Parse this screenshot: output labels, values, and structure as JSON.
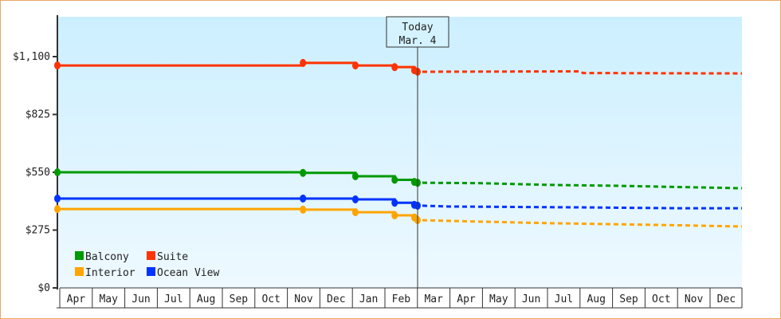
{
  "chart_data": {
    "type": "line",
    "title": "",
    "xlabel": "",
    "ylabel": "",
    "ylim": [
      0,
      1100
    ],
    "y_ticks": [
      "$0",
      "$275",
      "$550",
      "$825",
      "$1,100"
    ],
    "y_tick_values": [
      0,
      275,
      550,
      825,
      1100
    ],
    "categories": [
      "Apr",
      "May",
      "Jun",
      "Jul",
      "Aug",
      "Sep",
      "Oct",
      "Nov",
      "Dec",
      "Jan",
      "Feb",
      "Mar",
      "Apr",
      "May",
      "Jun",
      "Jul",
      "Aug",
      "Sep",
      "Oct",
      "Nov",
      "Dec"
    ],
    "grid": false,
    "legend_position": "bottom-left inside",
    "today_marker": {
      "line1": "Today",
      "line2": "Mar. 4"
    },
    "series": [
      {
        "name": "Suite",
        "color": "#ff3300",
        "history": [
          [
            0,
            1058
          ],
          [
            7.5,
            1070
          ],
          [
            9.1,
            1058
          ],
          [
            10.3,
            1050
          ],
          [
            10.9,
            1035
          ],
          [
            11.0,
            1028
          ]
        ],
        "projection": [
          [
            11.0,
            1028
          ],
          [
            16.0,
            1030
          ],
          [
            16.1,
            1022
          ],
          [
            21.0,
            1020
          ]
        ]
      },
      {
        "name": "Balcony",
        "color": "#009900",
        "history": [
          [
            0,
            550
          ],
          [
            7.5,
            547
          ],
          [
            9.1,
            531
          ],
          [
            10.3,
            514
          ],
          [
            10.9,
            504
          ],
          [
            11.0,
            500
          ]
        ],
        "projection": [
          [
            11.0,
            500
          ],
          [
            13.0,
            498
          ],
          [
            15.0,
            490
          ],
          [
            17.0,
            486
          ],
          [
            19.0,
            480
          ],
          [
            21.0,
            474
          ]
        ]
      },
      {
        "name": "Ocean View",
        "color": "#0033ff",
        "history": [
          [
            0,
            425
          ],
          [
            7.5,
            425
          ],
          [
            9.1,
            421
          ],
          [
            10.3,
            405
          ],
          [
            10.9,
            395
          ],
          [
            11.0,
            391
          ]
        ],
        "projection": [
          [
            11.0,
            391
          ],
          [
            12.0,
            387
          ],
          [
            16.0,
            383
          ],
          [
            19.0,
            379
          ],
          [
            21.0,
            379
          ]
        ]
      },
      {
        "name": "Interior",
        "color": "#ffa500",
        "history": [
          [
            0,
            375
          ],
          [
            7.5,
            372
          ],
          [
            9.1,
            360
          ],
          [
            10.3,
            345
          ],
          [
            10.9,
            335
          ],
          [
            11.0,
            322
          ]
        ],
        "projection": [
          [
            11.0,
            322
          ],
          [
            13.0,
            315
          ],
          [
            15.0,
            308
          ],
          [
            17.0,
            303
          ],
          [
            19.0,
            298
          ],
          [
            21.0,
            292
          ]
        ]
      }
    ]
  },
  "legend": [
    {
      "label": "Balcony",
      "color": "#009900"
    },
    {
      "label": "Suite",
      "color": "#ff3300"
    },
    {
      "label": "Interior",
      "color": "#ffa500"
    },
    {
      "label": "Ocean View",
      "color": "#0033ff"
    }
  ],
  "today": {
    "line1": "Today",
    "line2": "Mar. 4"
  }
}
